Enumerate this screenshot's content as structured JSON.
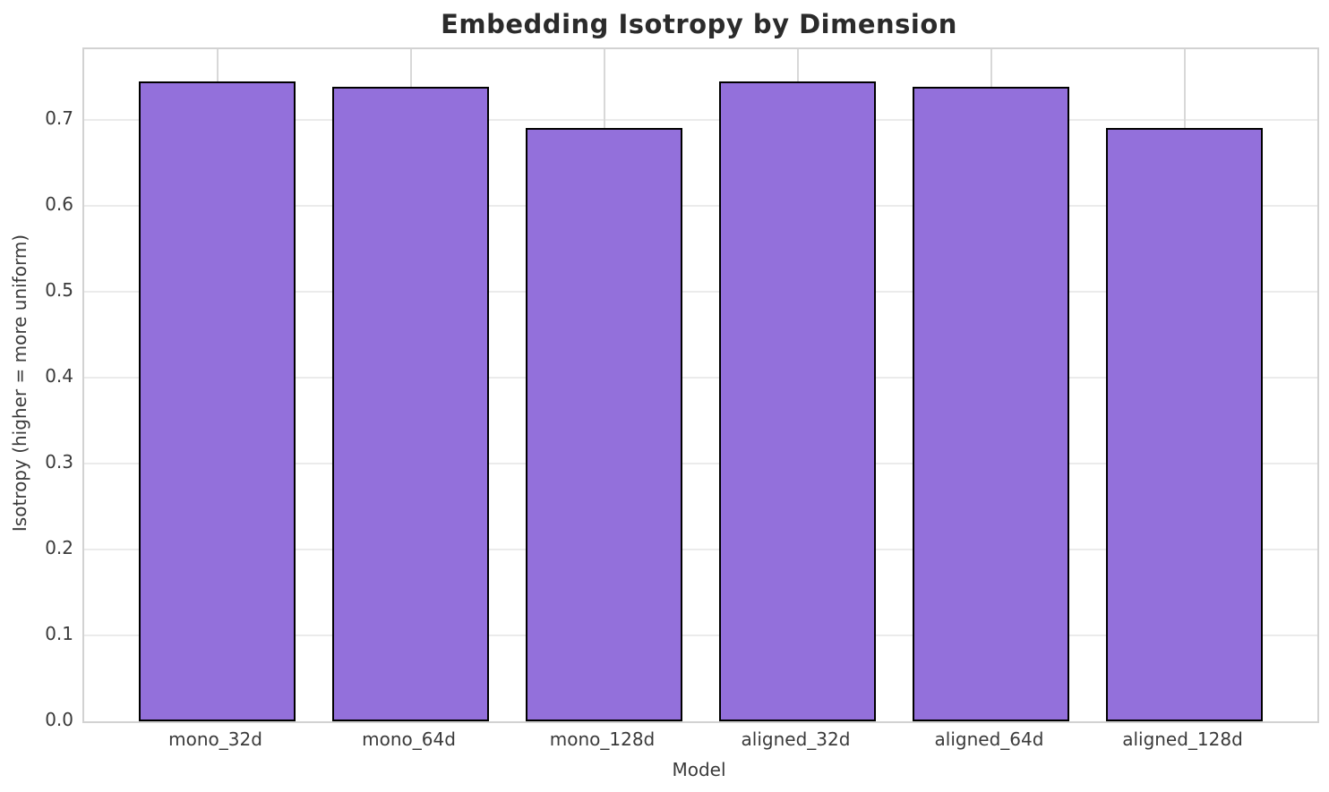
{
  "chart_data": {
    "type": "bar",
    "title": "Embedding Isotropy by Dimension",
    "xlabel": "Model",
    "ylabel": "Isotropy (higher = more uniform)",
    "categories": [
      "mono_32d",
      "mono_64d",
      "mono_128d",
      "aligned_32d",
      "aligned_64d",
      "aligned_128d"
    ],
    "values": [
      0.745,
      0.738,
      0.69,
      0.745,
      0.738,
      0.69
    ],
    "ylim": [
      0,
      0.782
    ],
    "yticks": [
      0.0,
      0.1,
      0.2,
      0.3,
      0.4,
      0.5,
      0.6,
      0.7
    ],
    "ytick_labels": [
      "0.0",
      "0.1",
      "0.2",
      "0.3",
      "0.4",
      "0.5",
      "0.6",
      "0.7"
    ],
    "grid": true,
    "legend": false,
    "bar_color": "#9370DB",
    "bar_edge_color": "#000000",
    "title_color": "#2b2b2b",
    "tick_color": "#3a3a3a"
  }
}
